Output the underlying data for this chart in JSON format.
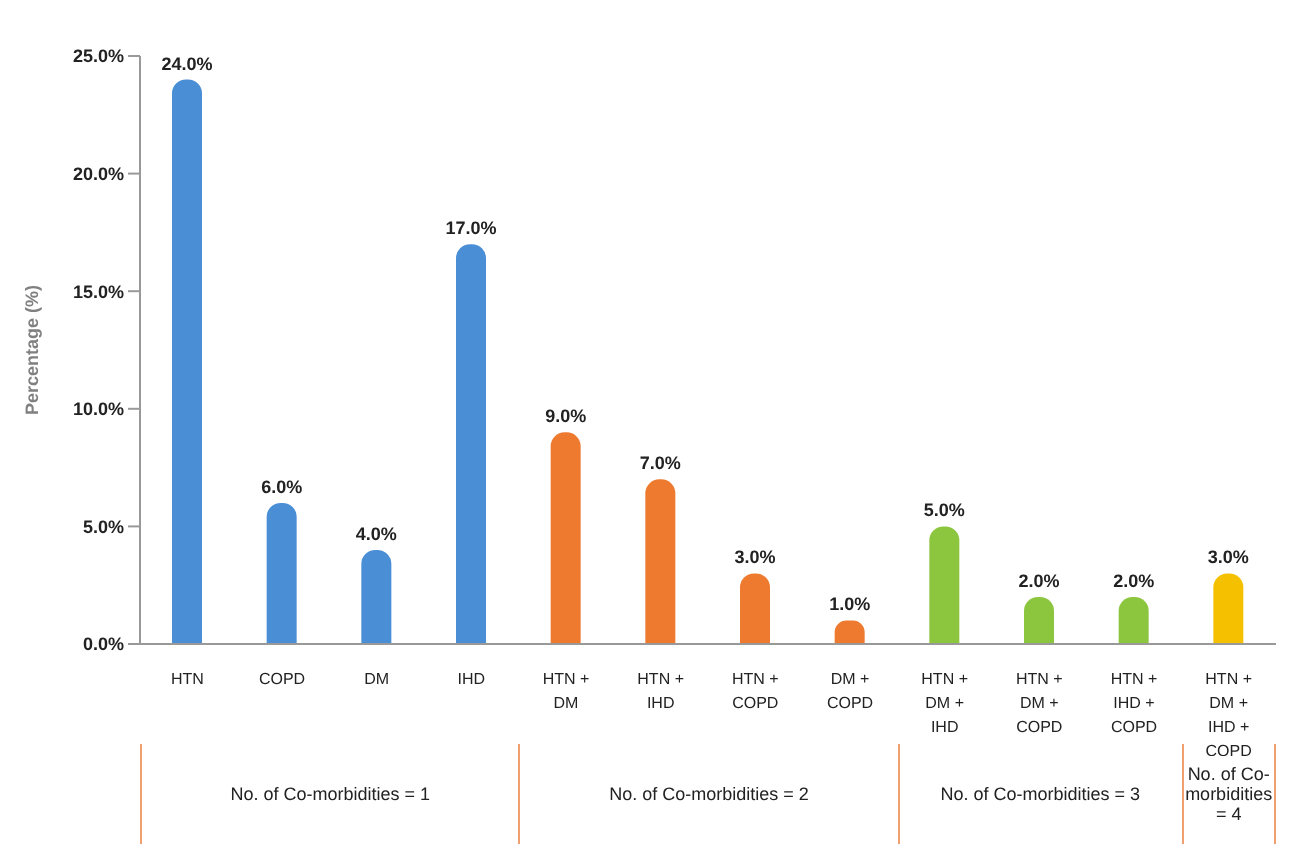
{
  "chart_data": {
    "type": "bar",
    "ylabel": "Percentage (%)",
    "categories": [
      "HTN",
      "COPD",
      "DM",
      "IHD",
      "HTN + DM",
      "HTN + IHD",
      "HTN + COPD",
      "DM + COPD",
      "HTN + DM + IHD",
      "HTN + DM + COPD",
      "HTN + IHD + COPD",
      "HTN + DM + IHD + COPD"
    ],
    "values": [
      24,
      6,
      4,
      17,
      9,
      7,
      3,
      1,
      5,
      2,
      2,
      3
    ],
    "value_labels": [
      "24.0%",
      "6.0%",
      "4.0%",
      "17.0%",
      "9.0%",
      "7.0%",
      "3.0%",
      "1.0%",
      "5.0%",
      "2.0%",
      "2.0%",
      "3.0%"
    ],
    "colors": [
      "#4a8fd6",
      "#4a8fd6",
      "#4a8fd6",
      "#4a8fd6",
      "#ee7a2f",
      "#ee7a2f",
      "#ee7a2f",
      "#ee7a2f",
      "#8cc63f",
      "#8cc63f",
      "#8cc63f",
      "#f5c000"
    ],
    "ylim": [
      0,
      25
    ],
    "yticks": [
      {
        "value": 0,
        "label": "0.0%"
      },
      {
        "value": 5,
        "label": "5.0%"
      },
      {
        "value": 10,
        "label": "10.0%"
      },
      {
        "value": 15,
        "label": "15.0%"
      },
      {
        "value": 20,
        "label": "20.0%"
      },
      {
        "value": 25,
        "label": "25.0%"
      }
    ],
    "annotations": [
      "No. of Co-morbidities = 1",
      "No. of Co-morbidities = 2",
      "No. of Co-morbidities = 3",
      "No. of Co-morbidities = 4"
    ],
    "grid": false,
    "legend": false
  }
}
